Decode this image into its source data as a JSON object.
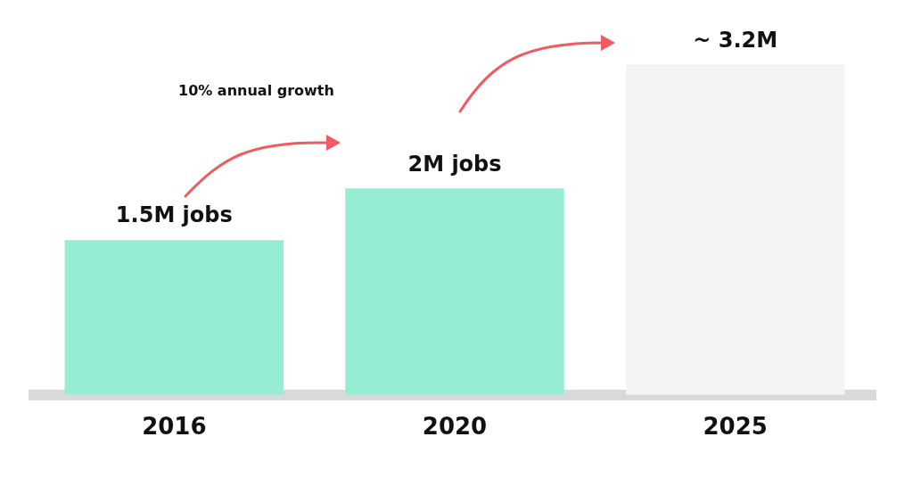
{
  "chart_data": {
    "type": "bar",
    "categories": [
      "2016",
      "2020",
      "2025"
    ],
    "values": [
      1.5,
      2,
      3.2
    ],
    "colors": [
      "#95eed3",
      "#95eed3",
      "#f4f4f4"
    ],
    "value_labels": [
      "1.5M jobs",
      "2M jobs",
      "~ 3.2M"
    ],
    "annotations": [
      "10% annual growth"
    ],
    "grid": false,
    "legend": false
  }
}
